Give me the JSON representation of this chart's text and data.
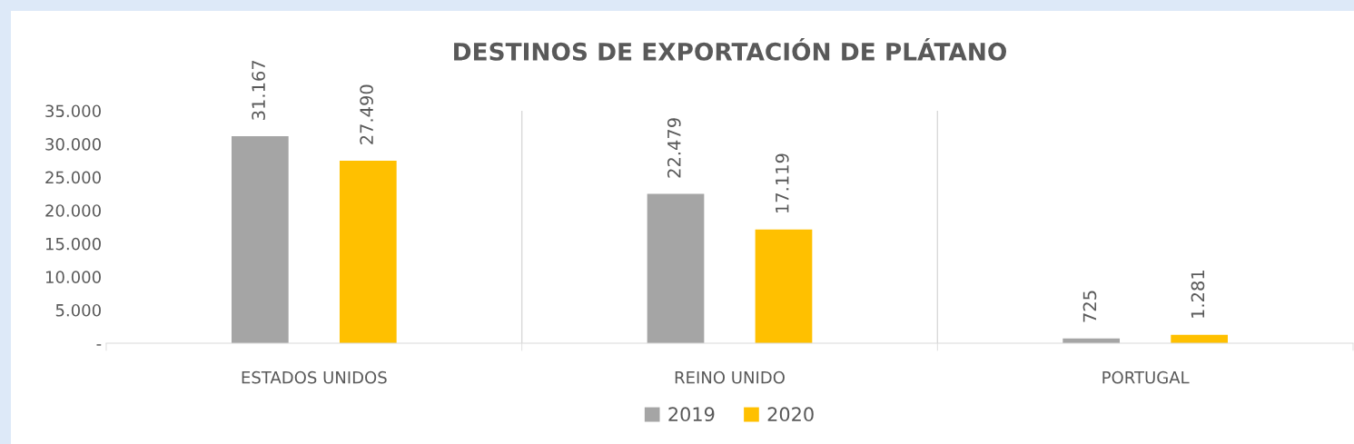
{
  "chart_data": {
    "type": "bar",
    "title": "DESTINOS DE EXPORTACIÓN DE PLÁTANO",
    "categories": [
      "ESTADOS UNIDOS",
      "REINO UNIDO",
      "PORTUGAL"
    ],
    "series": [
      {
        "name": "2019",
        "color": "#a5a5a5",
        "values": [
          31167,
          22479,
          725
        ],
        "value_labels": [
          "31.167",
          "22.479",
          "725"
        ]
      },
      {
        "name": "2020",
        "color": "#ffc000",
        "values": [
          27490,
          17119,
          1281
        ],
        "value_labels": [
          "27.490",
          "17.119",
          "1.281"
        ]
      }
    ],
    "ylim": [
      0,
      35000
    ],
    "yticks": [
      {
        "value": 0,
        "label": "-"
      },
      {
        "value": 5000,
        "label": "5.000"
      },
      {
        "value": 10000,
        "label": "10.000"
      },
      {
        "value": 15000,
        "label": "15.000"
      },
      {
        "value": 20000,
        "label": "20.000"
      },
      {
        "value": 25000,
        "label": "25.000"
      },
      {
        "value": 30000,
        "label": "30.000"
      },
      {
        "value": 35000,
        "label": "35.000"
      }
    ],
    "grid": "x",
    "legend": "bottom"
  }
}
